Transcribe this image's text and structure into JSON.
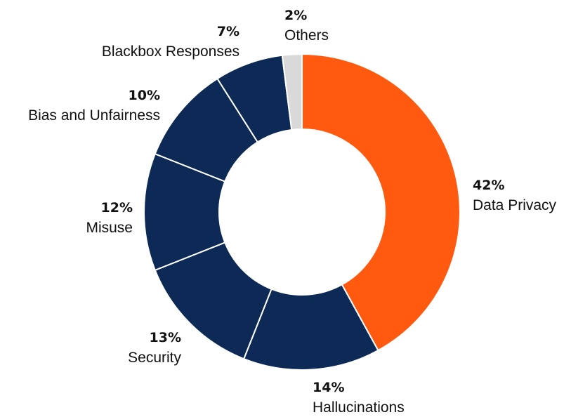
{
  "chart_data": {
    "type": "pie",
    "variant": "donut",
    "start": "12 o'clock",
    "direction": "clockwise",
    "slices": [
      {
        "label": "Data Privacy",
        "value": 42,
        "value_label": "42%",
        "color": "#FF5A0F"
      },
      {
        "label": "Hallucinations",
        "value": 14,
        "value_label": "14%",
        "color": "#0D2A57"
      },
      {
        "label": "Security",
        "value": 13,
        "value_label": "13%",
        "color": "#0D2A57"
      },
      {
        "label": "Misuse",
        "value": 12,
        "value_label": "12%",
        "color": "#0D2A57"
      },
      {
        "label": "Bias and Unfairness",
        "value": 10,
        "value_label": "10%",
        "color": "#0D2A57"
      },
      {
        "label": "Blackbox Responses",
        "value": 7,
        "value_label": "7%",
        "color": "#0D2A57"
      },
      {
        "label": "Others",
        "value": 2,
        "value_label": "2%",
        "color": "#D9D9D9"
      }
    ],
    "slice_border_color": "#FFFFFF"
  }
}
